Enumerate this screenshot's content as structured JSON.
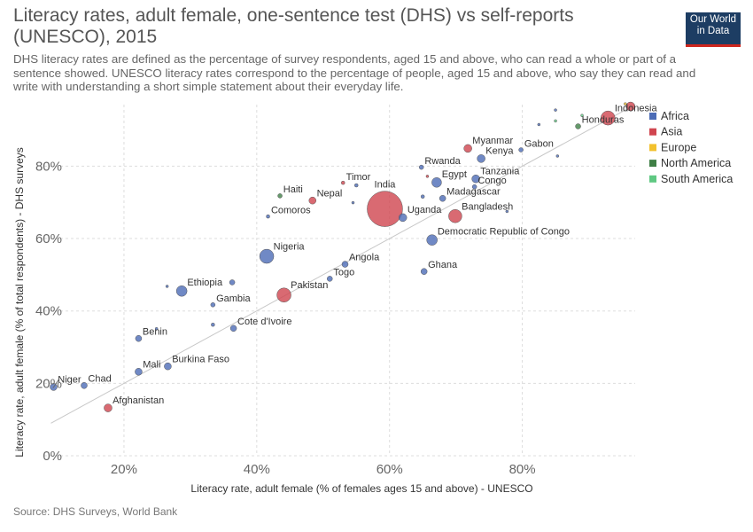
{
  "header": {
    "title": "Literacy rates, adult female, one-sentence test (DHS) vs self-reports (UNESCO), 2015",
    "subtitle": "DHS literacy rates are defined as the percentage of survey respondents, aged 15 and above, who can read a whole or part of a sentence showed. UNESCO literacy rates correspond to the percentage of people, aged 15 and above, who say they can read and write with understanding a short simple statement about their everyday life.",
    "logo_line1": "Our World",
    "logo_line2": "in Data"
  },
  "footer": {
    "source": "Source: DHS Surveys, World Bank"
  },
  "colors": {
    "Africa": "#4c6cb6",
    "Asia": "#d0454f",
    "Europe": "#f2c12e",
    "North America": "#3f7f46",
    "South America": "#5fc882",
    "logo_bg": "#1d3d63",
    "logo_accent": "#ce261e"
  },
  "chart_data": {
    "type": "scatter",
    "title": "Literacy rates, adult female, one-sentence test (DHS) vs self-reports (UNESCO), 2015",
    "xlabel": "Literacy rate, adult female (% of females ages 15 and above) - UNESCO",
    "ylabel": "Literacy rate, adult female (% of total respondents) - DHS surveys",
    "xlim": [
      8,
      97
    ],
    "ylim": [
      0,
      97
    ],
    "xticks": [
      20,
      40,
      60,
      80
    ],
    "xtick_labels": [
      "20%",
      "40%",
      "60%",
      "80%"
    ],
    "yticks": [
      0,
      20,
      40,
      60,
      80
    ],
    "ytick_labels": [
      "0%",
      "20%",
      "40%",
      "60%",
      "80%"
    ],
    "grid": true,
    "legend_position": "top-right",
    "legend": [
      "Africa",
      "Asia",
      "Europe",
      "North America",
      "South America"
    ],
    "reference_line": {
      "from": [
        9,
        9
      ],
      "to": [
        97,
        97
      ]
    },
    "points": [
      {
        "label": "India",
        "x": 59.3,
        "y": 68.2,
        "region": "Asia",
        "size": 20
      },
      {
        "label": "Indonesia",
        "x": 92.9,
        "y": 93.3,
        "region": "Asia",
        "size": 8
      },
      {
        "label": "Honduras",
        "x": 88.4,
        "y": 91.0,
        "region": "North America",
        "size": 3
      },
      {
        "label": "",
        "x": 96.3,
        "y": 96.5,
        "region": "Asia",
        "size": 5
      },
      {
        "label": "",
        "x": 95.5,
        "y": 97.2,
        "region": "Europe",
        "size": 1.5
      },
      {
        "label": "",
        "x": 85.0,
        "y": 95.5,
        "region": "Africa",
        "size": 1.5
      },
      {
        "label": "",
        "x": 89.0,
        "y": 94.0,
        "region": "South America",
        "size": 1.5
      },
      {
        "label": "",
        "x": 85.0,
        "y": 92.5,
        "region": "South America",
        "size": 1.5
      },
      {
        "label": "",
        "x": 82.5,
        "y": 91.5,
        "region": "Africa",
        "size": 1.5
      },
      {
        "label": "",
        "x": 85.3,
        "y": 82.8,
        "region": "Africa",
        "size": 1.5
      },
      {
        "label": "Gabon",
        "x": 79.8,
        "y": 84.5,
        "region": "Africa",
        "size": 2.5
      },
      {
        "label": "Myanmar",
        "x": 71.8,
        "y": 84.9,
        "region": "Asia",
        "size": 4.5
      },
      {
        "label": "Kenya",
        "x": 73.8,
        "y": 82.1,
        "region": "Africa",
        "size": 4.5
      },
      {
        "label": "Rwanda",
        "x": 64.8,
        "y": 79.7,
        "region": "Africa",
        "size": 2.5
      },
      {
        "label": "Egypt",
        "x": 67.1,
        "y": 75.5,
        "region": "Africa",
        "size": 5.5
      },
      {
        "label": "",
        "x": 65.7,
        "y": 77.2,
        "region": "Asia",
        "size": 1.5
      },
      {
        "label": "Tanzania",
        "x": 73.0,
        "y": 76.5,
        "region": "Africa",
        "size": 4.5
      },
      {
        "label": "Congo",
        "x": 72.8,
        "y": 74.3,
        "region": "Africa",
        "size": 2.5
      },
      {
        "label": "Madagascar",
        "x": 68.0,
        "y": 71.1,
        "region": "Africa",
        "size": 3.5
      },
      {
        "label": "",
        "x": 65.0,
        "y": 71.6,
        "region": "Africa",
        "size": 2
      },
      {
        "label": "Bangladesh",
        "x": 69.9,
        "y": 66.2,
        "region": "Asia",
        "size": 7.5
      },
      {
        "label": "",
        "x": 77.7,
        "y": 67.5,
        "region": "Africa",
        "size": 1.5
      },
      {
        "label": "Uganda",
        "x": 62.0,
        "y": 65.8,
        "region": "Africa",
        "size": 4.5
      },
      {
        "label": "Timor",
        "x": 53.0,
        "y": 75.4,
        "region": "Asia",
        "size": 2
      },
      {
        "label": "",
        "x": 55.0,
        "y": 74.7,
        "region": "Africa",
        "size": 2
      },
      {
        "label": "Haiti",
        "x": 43.5,
        "y": 71.8,
        "region": "North America",
        "size": 2.5
      },
      {
        "label": "Nepal",
        "x": 48.4,
        "y": 70.5,
        "region": "Asia",
        "size": 4
      },
      {
        "label": "",
        "x": 54.5,
        "y": 69.9,
        "region": "Africa",
        "size": 1.5
      },
      {
        "label": "Comoros",
        "x": 41.7,
        "y": 66.1,
        "region": "Africa",
        "size": 2
      },
      {
        "label": "Democratic Republic of Congo",
        "x": 66.4,
        "y": 59.6,
        "region": "Africa",
        "size": 6
      },
      {
        "label": "Nigeria",
        "x": 41.5,
        "y": 55.1,
        "region": "Africa",
        "size": 8
      },
      {
        "label": "Angola",
        "x": 53.3,
        "y": 52.9,
        "region": "Africa",
        "size": 3.5
      },
      {
        "label": "Togo",
        "x": 51.0,
        "y": 48.9,
        "region": "Africa",
        "size": 3
      },
      {
        "label": "Ghana",
        "x": 65.2,
        "y": 50.9,
        "region": "Africa",
        "size": 3.5
      },
      {
        "label": "Pakistan",
        "x": 44.1,
        "y": 44.4,
        "region": "Asia",
        "size": 8
      },
      {
        "label": "Ethiopia",
        "x": 28.7,
        "y": 45.5,
        "region": "Africa",
        "size": 6
      },
      {
        "label": "",
        "x": 36.3,
        "y": 47.9,
        "region": "Africa",
        "size": 3
      },
      {
        "label": "",
        "x": 26.5,
        "y": 46.8,
        "region": "Africa",
        "size": 1.5
      },
      {
        "label": "Gambia",
        "x": 33.4,
        "y": 41.7,
        "region": "Africa",
        "size": 2.5
      },
      {
        "label": "Cote d'Ivoire",
        "x": 36.5,
        "y": 35.2,
        "region": "Africa",
        "size": 3.5
      },
      {
        "label": "",
        "x": 33.4,
        "y": 36.2,
        "region": "Africa",
        "size": 2
      },
      {
        "label": "Benin",
        "x": 22.2,
        "y": 32.4,
        "region": "Africa",
        "size": 3.5
      },
      {
        "label": "",
        "x": 24.9,
        "y": 35.1,
        "region": "Africa",
        "size": 1.5
      },
      {
        "label": "Burkina Faso",
        "x": 26.6,
        "y": 24.7,
        "region": "Africa",
        "size": 4
      },
      {
        "label": "Mali",
        "x": 22.2,
        "y": 23.2,
        "region": "Africa",
        "size": 4
      },
      {
        "label": "Niger",
        "x": 9.4,
        "y": 19.0,
        "region": "Africa",
        "size": 4
      },
      {
        "label": "Chad",
        "x": 14.0,
        "y": 19.4,
        "region": "Africa",
        "size": 3.5
      },
      {
        "label": "Afghanistan",
        "x": 17.6,
        "y": 13.2,
        "region": "Asia",
        "size": 4.5
      }
    ]
  }
}
